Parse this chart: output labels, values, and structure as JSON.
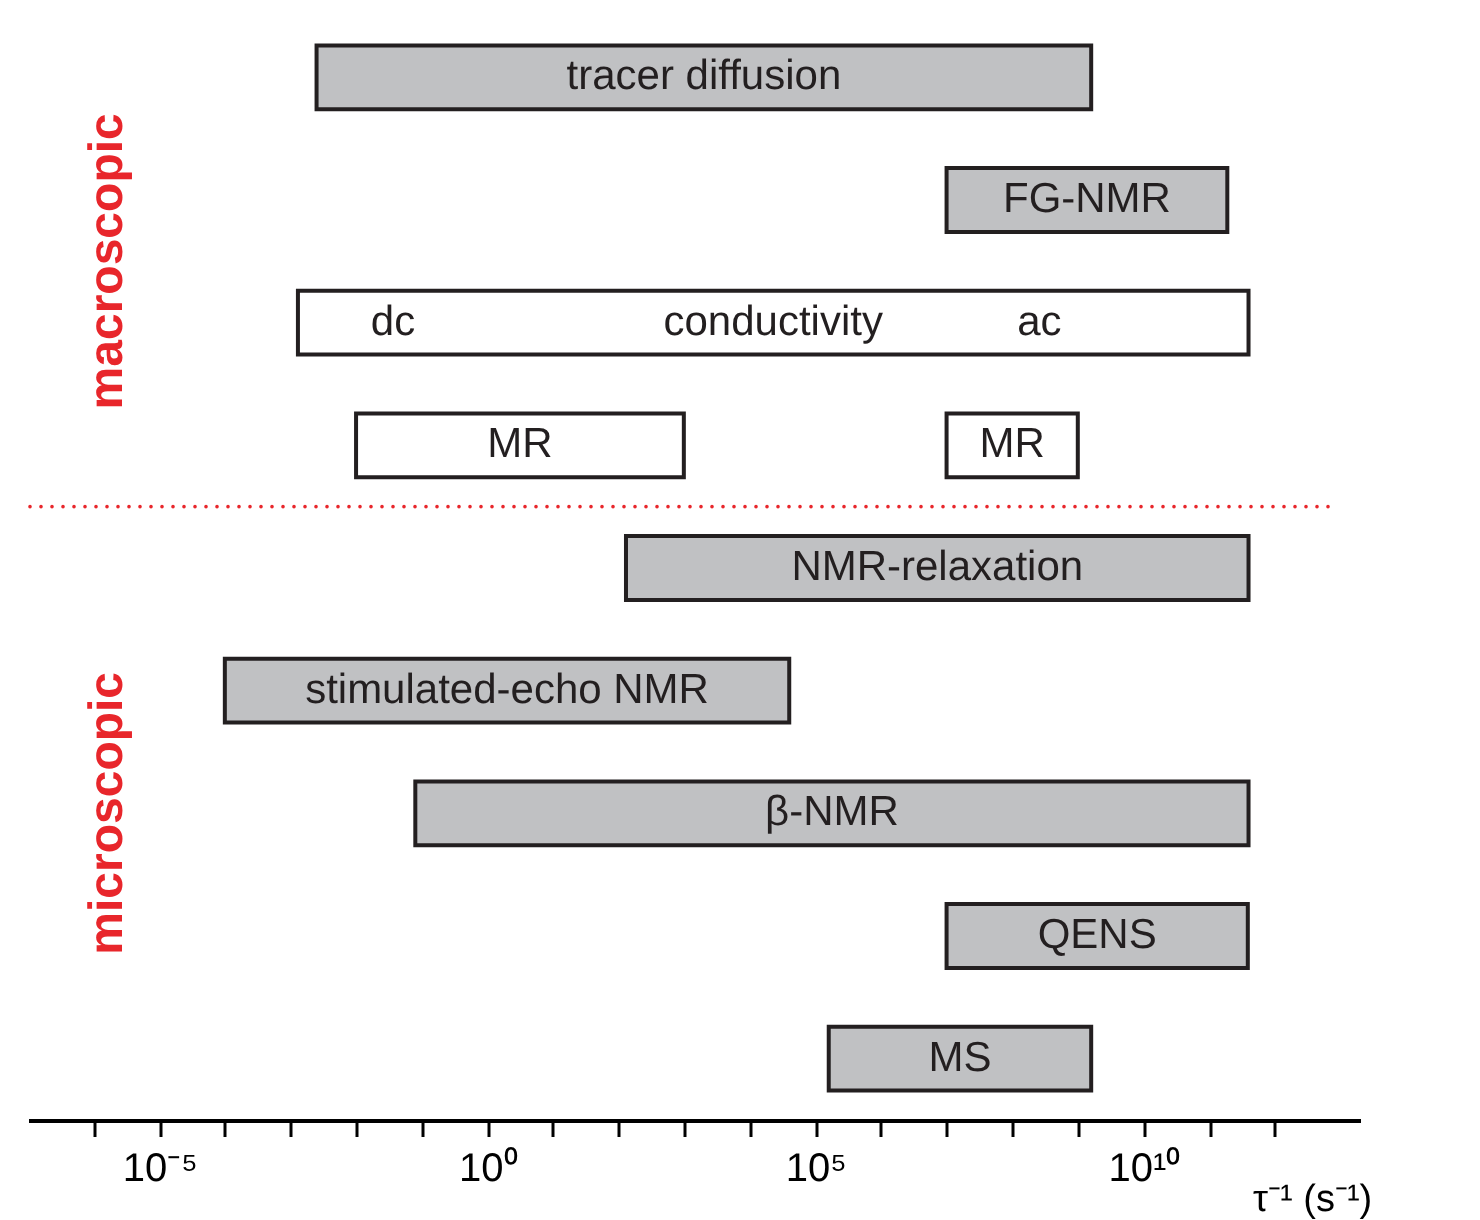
{
  "chart_data": {
    "type": "bar",
    "orientation": "horizontal",
    "log": "x",
    "xlabel": "τ⁻¹ (s⁻¹)",
    "categories": [
      "tracer diffusion",
      "FG-NMR",
      "conductivity",
      "MR",
      "NMR-relaxation",
      "stimulated-echo NMR",
      "β-NMR",
      "QENS",
      "MS"
    ],
    "series": [
      {
        "values": [
          1600000000.0,
          190000000000.0,
          400000000000.0,
          990,
          400000000000.0,
          40000.0,
          400000000000.0,
          390000000000.0,
          1600000000.0
        ],
        "base": [
          0.0025,
          10000000.0,
          0.0013,
          0.01,
          130,
          0.0001,
          0.08,
          10000000.0,
          160000.0
        ],
        "colors": [
          "#c0c1c3",
          "#c0c1c3",
          "#ffffff",
          "#ffffff",
          "#c0c1c3",
          "#c0c1c3",
          "#c0c1c3",
          "#c0c1c3",
          "#c0c1c3"
        ]
      },
      {
        "values": [
          null,
          null,
          null,
          990000000.0,
          null,
          null,
          null,
          null,
          null
        ],
        "base": [
          null,
          null,
          null,
          10000000.0,
          null,
          null,
          null,
          null,
          null
        ],
        "colors": [
          null,
          null,
          null,
          "#ffffff",
          null,
          null,
          null,
          null,
          null
        ]
      }
    ],
    "xlim": [
      1e-07,
      20000000000000.0
    ],
    "xticks": [
      {
        "value": 1e-06,
        "label": null
      },
      {
        "value": 1e-05,
        "label": "10⁻⁵"
      },
      {
        "value": 0.0001,
        "label": null
      },
      {
        "value": 0.001,
        "label": null
      },
      {
        "value": 0.01,
        "label": null
      },
      {
        "value": 0.1,
        "label": null
      },
      {
        "value": 1,
        "label": "10⁰"
      },
      {
        "value": 10,
        "label": null
      },
      {
        "value": 100,
        "label": null
      },
      {
        "value": 1000,
        "label": null
      },
      {
        "value": 10000.0,
        "label": null
      },
      {
        "value": 100000.0,
        "label": "10⁵"
      },
      {
        "value": 1000000.0,
        "label": null
      },
      {
        "value": 10000000.0,
        "label": null
      },
      {
        "value": 100000000.0,
        "label": null
      },
      {
        "value": 1000000000.0,
        "label": null
      },
      {
        "value": 10000000000.0,
        "label": "10¹⁰"
      },
      {
        "value": 100000000000.0,
        "label": null
      },
      {
        "value": 1000000000000.0,
        "label": null
      }
    ],
    "annotations": [
      "macroscopic",
      "microscopic",
      "dc",
      "ac"
    ]
  }
}
